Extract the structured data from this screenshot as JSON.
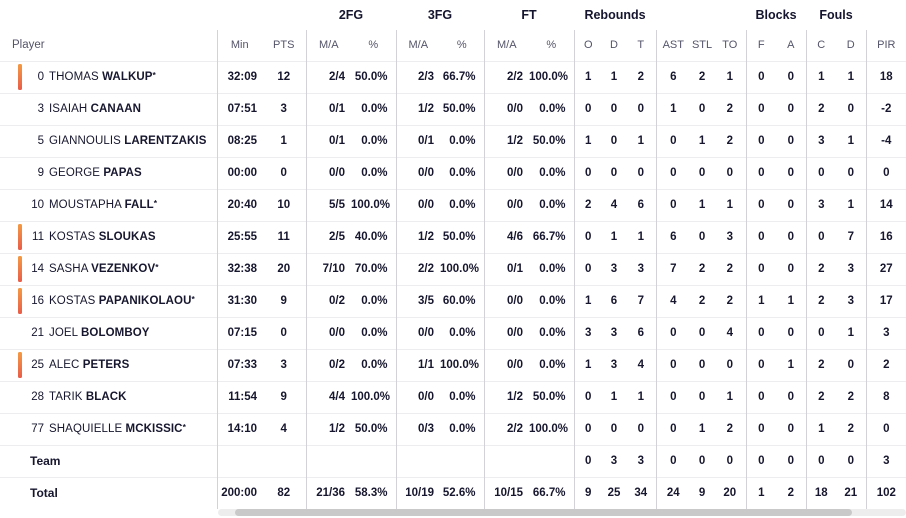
{
  "colors": {
    "on_court_bar_top": "#f49a44",
    "on_court_bar_bottom": "#e85c49",
    "text_dark": "#16162e",
    "header_gray": "#54546a",
    "divider": "#d2d2d8",
    "row_separator": "#ededf0",
    "scrollbar_track": "#ededed",
    "scrollbar_thumb": "#c9c9c9"
  },
  "table": {
    "group_headers": [
      {
        "label": "",
        "span": 1
      },
      {
        "label": "",
        "span": 2
      },
      {
        "label": "2FG",
        "span": 2
      },
      {
        "label": "3FG",
        "span": 2
      },
      {
        "label": "FT",
        "span": 2
      },
      {
        "label": "Rebounds",
        "span": 3
      },
      {
        "label": "",
        "span": 3
      },
      {
        "label": "Blocks",
        "span": 2
      },
      {
        "label": "Fouls",
        "span": 2
      },
      {
        "label": "",
        "span": 1
      }
    ],
    "columns": [
      "Player",
      "Min",
      "PTS",
      "M/A",
      "%",
      "M/A",
      "%",
      "M/A",
      "%",
      "O",
      "D",
      "T",
      "AST",
      "STL",
      "TO",
      "F",
      "A",
      "C",
      "D",
      "PIR"
    ],
    "rows": [
      {
        "number": "0",
        "first": "THOMAS",
        "last": "WALKUP",
        "starter": true,
        "on_court": true,
        "min": "32:09",
        "pts": "12",
        "fg2_ma": "2/4",
        "fg2_pct": "50.0%",
        "fg3_ma": "2/3",
        "fg3_pct": "66.7%",
        "ft_ma": "2/2",
        "ft_pct": "100.0%",
        "reb_o": "1",
        "reb_d": "1",
        "reb_t": "2",
        "ast": "6",
        "stl": "2",
        "to": "1",
        "blk_f": "0",
        "blk_a": "0",
        "foul_c": "1",
        "foul_d": "1",
        "pir": "18"
      },
      {
        "number": "3",
        "first": "ISAIAH",
        "last": "CANAAN",
        "starter": false,
        "on_court": false,
        "min": "07:51",
        "pts": "3",
        "fg2_ma": "0/1",
        "fg2_pct": "0.0%",
        "fg3_ma": "1/2",
        "fg3_pct": "50.0%",
        "ft_ma": "0/0",
        "ft_pct": "0.0%",
        "reb_o": "0",
        "reb_d": "0",
        "reb_t": "0",
        "ast": "1",
        "stl": "0",
        "to": "2",
        "blk_f": "0",
        "blk_a": "0",
        "foul_c": "2",
        "foul_d": "0",
        "pir": "-2"
      },
      {
        "number": "5",
        "first": "GIANNOULIS",
        "last": "LARENTZAKIS",
        "starter": false,
        "on_court": false,
        "min": "08:25",
        "pts": "1",
        "fg2_ma": "0/1",
        "fg2_pct": "0.0%",
        "fg3_ma": "0/1",
        "fg3_pct": "0.0%",
        "ft_ma": "1/2",
        "ft_pct": "50.0%",
        "reb_o": "1",
        "reb_d": "0",
        "reb_t": "1",
        "ast": "0",
        "stl": "1",
        "to": "2",
        "blk_f": "0",
        "blk_a": "0",
        "foul_c": "3",
        "foul_d": "1",
        "pir": "-4"
      },
      {
        "number": "9",
        "first": "GEORGE",
        "last": "PAPAS",
        "starter": false,
        "on_court": false,
        "min": "00:00",
        "pts": "0",
        "fg2_ma": "0/0",
        "fg2_pct": "0.0%",
        "fg3_ma": "0/0",
        "fg3_pct": "0.0%",
        "ft_ma": "0/0",
        "ft_pct": "0.0%",
        "reb_o": "0",
        "reb_d": "0",
        "reb_t": "0",
        "ast": "0",
        "stl": "0",
        "to": "0",
        "blk_f": "0",
        "blk_a": "0",
        "foul_c": "0",
        "foul_d": "0",
        "pir": "0"
      },
      {
        "number": "10",
        "first": "MOUSTAPHA",
        "last": "FALL",
        "starter": true,
        "on_court": false,
        "min": "20:40",
        "pts": "10",
        "fg2_ma": "5/5",
        "fg2_pct": "100.0%",
        "fg3_ma": "0/0",
        "fg3_pct": "0.0%",
        "ft_ma": "0/0",
        "ft_pct": "0.0%",
        "reb_o": "2",
        "reb_d": "4",
        "reb_t": "6",
        "ast": "0",
        "stl": "1",
        "to": "1",
        "blk_f": "0",
        "blk_a": "0",
        "foul_c": "3",
        "foul_d": "1",
        "pir": "14"
      },
      {
        "number": "11",
        "first": "KOSTAS",
        "last": "SLOUKAS",
        "starter": false,
        "on_court": true,
        "min": "25:55",
        "pts": "11",
        "fg2_ma": "2/5",
        "fg2_pct": "40.0%",
        "fg3_ma": "1/2",
        "fg3_pct": "50.0%",
        "ft_ma": "4/6",
        "ft_pct": "66.7%",
        "reb_o": "0",
        "reb_d": "1",
        "reb_t": "1",
        "ast": "6",
        "stl": "0",
        "to": "3",
        "blk_f": "0",
        "blk_a": "0",
        "foul_c": "0",
        "foul_d": "7",
        "pir": "16"
      },
      {
        "number": "14",
        "first": "SASHA",
        "last": "VEZENKOV",
        "starter": true,
        "on_court": true,
        "min": "32:38",
        "pts": "20",
        "fg2_ma": "7/10",
        "fg2_pct": "70.0%",
        "fg3_ma": "2/2",
        "fg3_pct": "100.0%",
        "ft_ma": "0/1",
        "ft_pct": "0.0%",
        "reb_o": "0",
        "reb_d": "3",
        "reb_t": "3",
        "ast": "7",
        "stl": "2",
        "to": "2",
        "blk_f": "0",
        "blk_a": "0",
        "foul_c": "2",
        "foul_d": "3",
        "pir": "27"
      },
      {
        "number": "16",
        "first": "KOSTAS",
        "last": "PAPANIKOLAOU",
        "starter": true,
        "on_court": true,
        "min": "31:30",
        "pts": "9",
        "fg2_ma": "0/2",
        "fg2_pct": "0.0%",
        "fg3_ma": "3/5",
        "fg3_pct": "60.0%",
        "ft_ma": "0/0",
        "ft_pct": "0.0%",
        "reb_o": "1",
        "reb_d": "6",
        "reb_t": "7",
        "ast": "4",
        "stl": "2",
        "to": "2",
        "blk_f": "1",
        "blk_a": "1",
        "foul_c": "2",
        "foul_d": "3",
        "pir": "17"
      },
      {
        "number": "21",
        "first": "JOEL",
        "last": "BOLOMBOY",
        "starter": false,
        "on_court": false,
        "min": "07:15",
        "pts": "0",
        "fg2_ma": "0/0",
        "fg2_pct": "0.0%",
        "fg3_ma": "0/0",
        "fg3_pct": "0.0%",
        "ft_ma": "0/0",
        "ft_pct": "0.0%",
        "reb_o": "3",
        "reb_d": "3",
        "reb_t": "6",
        "ast": "0",
        "stl": "0",
        "to": "4",
        "blk_f": "0",
        "blk_a": "0",
        "foul_c": "0",
        "foul_d": "1",
        "pir": "3"
      },
      {
        "number": "25",
        "first": "ALEC",
        "last": "PETERS",
        "starter": false,
        "on_court": true,
        "min": "07:33",
        "pts": "3",
        "fg2_ma": "0/2",
        "fg2_pct": "0.0%",
        "fg3_ma": "1/1",
        "fg3_pct": "100.0%",
        "ft_ma": "0/0",
        "ft_pct": "0.0%",
        "reb_o": "1",
        "reb_d": "3",
        "reb_t": "4",
        "ast": "0",
        "stl": "0",
        "to": "0",
        "blk_f": "0",
        "blk_a": "1",
        "foul_c": "2",
        "foul_d": "0",
        "pir": "2"
      },
      {
        "number": "28",
        "first": "TARIK",
        "last": "BLACK",
        "starter": false,
        "on_court": false,
        "min": "11:54",
        "pts": "9",
        "fg2_ma": "4/4",
        "fg2_pct": "100.0%",
        "fg3_ma": "0/0",
        "fg3_pct": "0.0%",
        "ft_ma": "1/2",
        "ft_pct": "50.0%",
        "reb_o": "0",
        "reb_d": "1",
        "reb_t": "1",
        "ast": "0",
        "stl": "0",
        "to": "1",
        "blk_f": "0",
        "blk_a": "0",
        "foul_c": "2",
        "foul_d": "2",
        "pir": "8"
      },
      {
        "number": "77",
        "first": "SHAQUIELLE",
        "last": "MCKISSIC",
        "starter": true,
        "on_court": false,
        "min": "14:10",
        "pts": "4",
        "fg2_ma": "1/2",
        "fg2_pct": "50.0%",
        "fg3_ma": "0/3",
        "fg3_pct": "0.0%",
        "ft_ma": "2/2",
        "ft_pct": "100.0%",
        "reb_o": "0",
        "reb_d": "0",
        "reb_t": "0",
        "ast": "0",
        "stl": "1",
        "to": "2",
        "blk_f": "0",
        "blk_a": "0",
        "foul_c": "1",
        "foul_d": "2",
        "pir": "0"
      }
    ],
    "team_row": {
      "label": "Team",
      "min": "",
      "pts": "",
      "fg2_ma": "",
      "fg2_pct": "",
      "fg3_ma": "",
      "fg3_pct": "",
      "ft_ma": "",
      "ft_pct": "",
      "reb_o": "0",
      "reb_d": "3",
      "reb_t": "3",
      "ast": "0",
      "stl": "0",
      "to": "0",
      "blk_f": "0",
      "blk_a": "0",
      "foul_c": "0",
      "foul_d": "0",
      "pir": "3"
    },
    "total_row": {
      "label": "Total",
      "min": "200:00",
      "pts": "82",
      "fg2_ma": "21/36",
      "fg2_pct": "58.3%",
      "fg3_ma": "10/19",
      "fg3_pct": "52.6%",
      "ft_ma": "10/15",
      "ft_pct": "66.7%",
      "reb_o": "9",
      "reb_d": "25",
      "reb_t": "34",
      "ast": "24",
      "stl": "9",
      "to": "20",
      "blk_f": "1",
      "blk_a": "2",
      "foul_c": "18",
      "foul_d": "21",
      "pir": "102"
    },
    "starter_marker": "*"
  }
}
